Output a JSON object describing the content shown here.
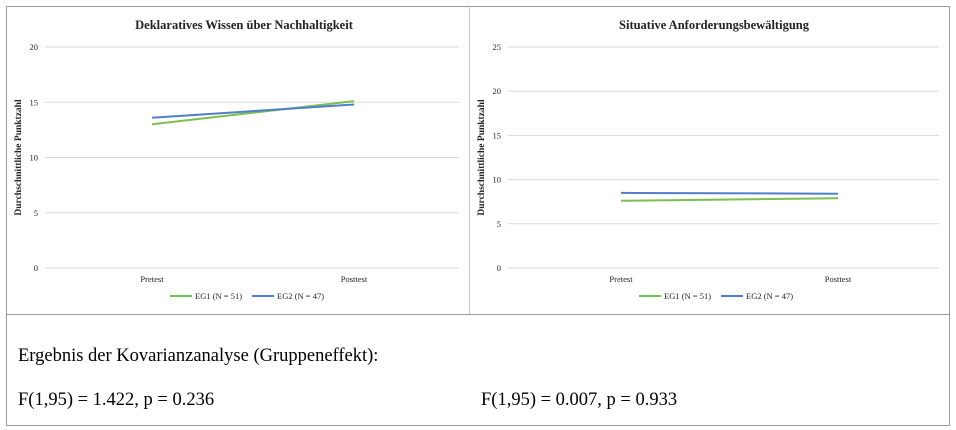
{
  "chart_data": [
    {
      "type": "line",
      "title": "Deklaratives Wissen über Nachhaltigkeit",
      "ylabel": "Durchschnittliche Punktzahl",
      "xlabel": "",
      "categories": [
        "Pretest",
        "Posttest"
      ],
      "ylim": [
        0,
        20
      ],
      "yticks": [
        0,
        5,
        10,
        15,
        20
      ],
      "grid": true,
      "legend": "bottom",
      "series": [
        {
          "name": "EG1 (N = 51)",
          "values": [
            13.0,
            15.1
          ],
          "color": "#7cbf4e"
        },
        {
          "name": "EG2 (N = 47)",
          "values": [
            13.6,
            14.8
          ],
          "color": "#4f7fc9"
        }
      ]
    },
    {
      "type": "line",
      "title": "Situative Anforderungsbewältigung",
      "ylabel": "Durchschnittliche Punktzahl",
      "xlabel": "",
      "categories": [
        "Pretest",
        "Posttest"
      ],
      "ylim": [
        0,
        25
      ],
      "yticks": [
        0,
        5,
        10,
        15,
        20,
        25
      ],
      "grid": true,
      "legend": "bottom",
      "series": [
        {
          "name": "EG1 (N = 51)",
          "values": [
            7.6,
            7.9
          ],
          "color": "#7cbf4e"
        },
        {
          "name": "EG2 (N = 47)",
          "values": [
            8.5,
            8.4
          ],
          "color": "#4f7fc9"
        }
      ]
    }
  ],
  "results": {
    "heading": "Ergebnis der Kovarianzanalyse (Gruppeneffekt):",
    "left": "F(1,95) = 1.422, p = 0.236",
    "right": "F(1,95) = 0.007, p = 0.933"
  }
}
